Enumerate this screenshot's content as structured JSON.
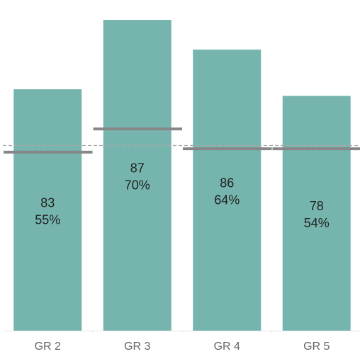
{
  "chart_data": {
    "type": "bar",
    "categories": [
      "GR 2",
      "GR 3",
      "GR 4",
      "GR 5"
    ],
    "series": [
      {
        "values": [
          0.73,
          0.94,
          0.85,
          0.71
        ],
        "labels": [
          {
            "count": "83",
            "percent": "55%"
          },
          {
            "count": "87",
            "percent": "70%"
          },
          {
            "count": "86",
            "percent": "64%"
          },
          {
            "count": "78",
            "percent": "54%"
          }
        ]
      }
    ],
    "reference_marks": [
      0.54,
      0.61,
      0.55,
      0.55
    ],
    "reference_line": 0.56,
    "ylim": [
      0,
      1.0
    ],
    "grid": false,
    "colors": {
      "bar": "#76b5ae",
      "reference_mark": "#878787",
      "reference_line": "#a9a9a9",
      "label_text": "#222222",
      "tick_text": "#666666",
      "axis": "#e6e6e6"
    }
  }
}
